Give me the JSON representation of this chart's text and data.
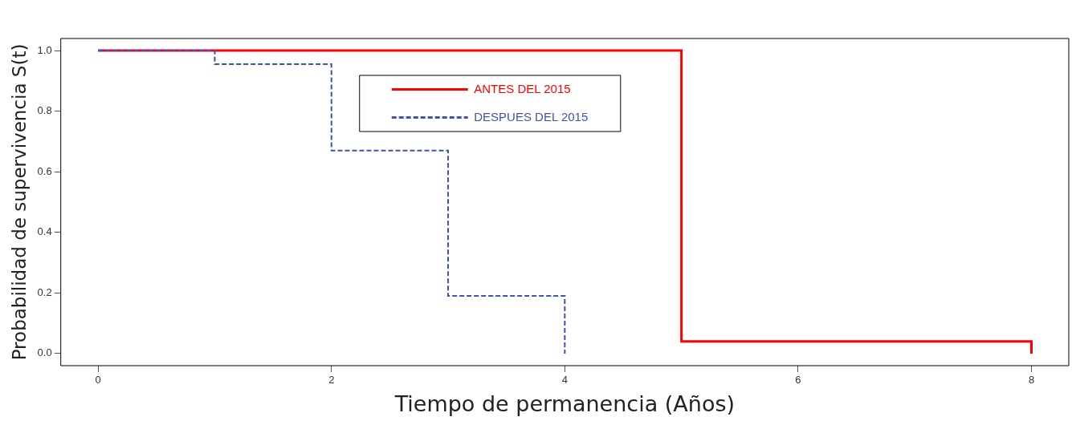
{
  "chart_data": {
    "type": "step",
    "xlabel": "Tiempo de permanencia (Años)",
    "ylabel": "Probabilidad de supervivencia S(t)",
    "xlim": [
      -0.32,
      8.32
    ],
    "xticks": [
      0,
      2,
      4,
      6,
      8
    ],
    "ylim": [
      -0.04,
      1.04
    ],
    "yticks": [
      {
        "value": 0,
        "label": "0.0"
      },
      0.2,
      0.4,
      0.6,
      0.8,
      {
        "value": 1,
        "label": "1.0"
      }
    ],
    "legend": "top",
    "grid": false,
    "series": [
      {
        "name": "ANTES DEL 2015",
        "color": "#ff0000",
        "line_style": "solid",
        "x": [
          0,
          5,
          8
        ],
        "values": [
          1,
          0.04,
          0
        ]
      },
      {
        "name": "DESPUES DEL 2015",
        "color": "#3f51b5",
        "line_style": "dashed",
        "x": [
          0,
          1,
          2,
          3,
          4
        ],
        "values": [
          1,
          0.955,
          0.67,
          0.19,
          0
        ]
      }
    ]
  }
}
